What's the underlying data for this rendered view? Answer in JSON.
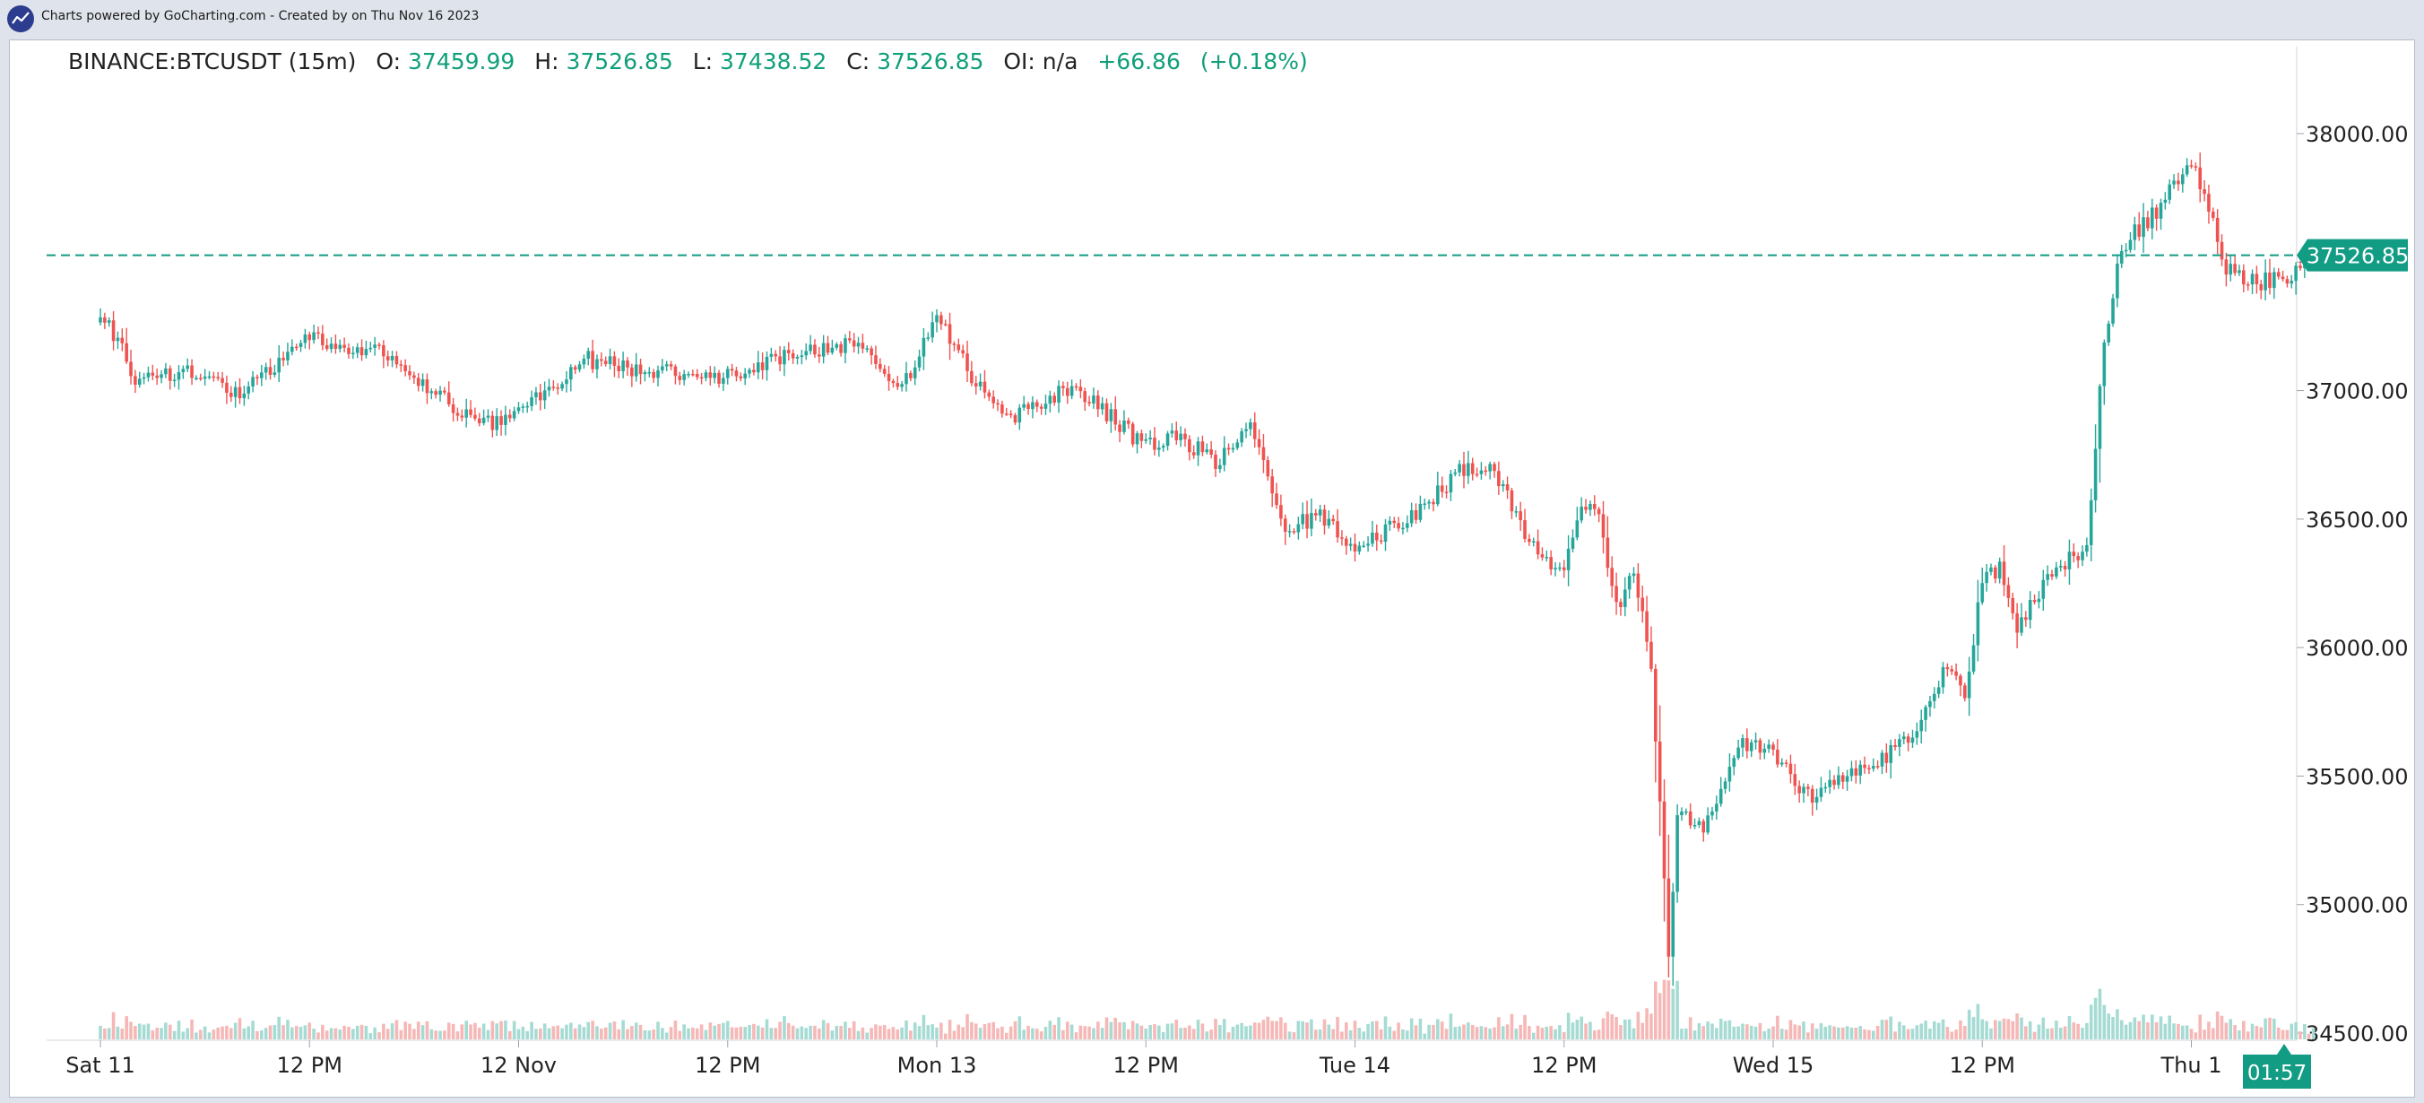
{
  "header": {
    "caption": "Charts powered by GoCharting.com - Created by  on Thu Nov 16 2023"
  },
  "legend": {
    "symbol": "BINANCE:BTCUSDT (15m)",
    "open_label": "O:",
    "open": "37459.99",
    "high_label": "H:",
    "high": "37526.85",
    "low_label": "L:",
    "low": "37438.52",
    "close_label": "C:",
    "close": "37526.85",
    "oi_label": "OI:",
    "oi": "n/a",
    "change": "+66.86",
    "change_pct": "(+0.18%)"
  },
  "colors": {
    "up": "#26a69a",
    "down": "#ef5350",
    "up_volume": "#a6dbd4",
    "down_volume": "#f5b8b6",
    "price_line": "#129c84",
    "axis_text": "#222222"
  },
  "chart_data": {
    "type": "candlestick",
    "interval": "15m",
    "ylim": [
      34500,
      38000
    ],
    "y_ticks": [
      "38000.00",
      "37500.00",
      "37000.00",
      "36500.00",
      "36000.00",
      "35500.00",
      "35000.00",
      "34500.00"
    ],
    "x_ticks": [
      "Sat 11",
      "12 PM",
      "12 Nov",
      "12 PM",
      "Mon 13",
      "12 PM",
      "Tue 14",
      "12 PM",
      "Wed 15",
      "12 PM",
      "Thu 1"
    ],
    "last_price": 37526.85,
    "last_price_label": "37526.85",
    "countdown": "01:57",
    "anchors": [
      [
        "Sat 11 00:00",
        37320
      ],
      [
        "Sat 11 02:00",
        37050
      ],
      [
        "Sat 11 05:00",
        37080
      ],
      [
        "Sat 11 08:00",
        36980
      ],
      [
        "Sat 11 12:00",
        37200
      ],
      [
        "Sat 11 16:00",
        37150
      ],
      [
        "Sat 11 20:00",
        36950
      ],
      [
        "Sat 11 22:00",
        36860
      ],
      [
        "12 Nov 00:00",
        36920
      ],
      [
        "12 Nov 04:00",
        37120
      ],
      [
        "12 Nov 08:00",
        37070
      ],
      [
        "12 Nov 12:00",
        37060
      ],
      [
        "12 Nov 16:00",
        37150
      ],
      [
        "12 Nov 20:00",
        37180
      ],
      [
        "12 Nov 22:00",
        37000
      ],
      [
        "Mon 13 00:00",
        37300
      ],
      [
        "Mon 13 02:00",
        37050
      ],
      [
        "Mon 13 04:00",
        36880
      ],
      [
        "Mon 13 06:00",
        36950
      ],
      [
        "Mon 13 08:00",
        37020
      ],
      [
        "Mon 13 12:00",
        36780
      ],
      [
        "Mon 13 14:00",
        36820
      ],
      [
        "Mon 13 16:00",
        36720
      ],
      [
        "Mon 13 18:00",
        36850
      ],
      [
        "Mon 13 20:00",
        36450
      ],
      [
        "Mon 13 22:00",
        36520
      ],
      [
        "Tue 14 00:00",
        36380
      ],
      [
        "Tue 14 03:00",
        36500
      ],
      [
        "Tue 14 06:00",
        36680
      ],
      [
        "Tue 14 08:00",
        36700
      ],
      [
        "Tue 14 10:00",
        36400
      ],
      [
        "Tue 14 12:00",
        36300
      ],
      [
        "Tue 14 13:00",
        36580
      ],
      [
        "Tue 14 14:00",
        36520
      ],
      [
        "Tue 14 15:00",
        36150
      ],
      [
        "Tue 14 16:00",
        36280
      ],
      [
        "Tue 14 17:00",
        35950
      ],
      [
        "Tue 14 18:00",
        34800
      ],
      [
        "Tue 14 18:30",
        35350
      ],
      [
        "Tue 14 20:00",
        35300
      ],
      [
        "Tue 14 22:00",
        35620
      ],
      [
        "Wed 15 00:00",
        35600
      ],
      [
        "Wed 15 02:00",
        35420
      ],
      [
        "Wed 15 04:00",
        35480
      ],
      [
        "Wed 15 06:00",
        35560
      ],
      [
        "Wed 15 08:00",
        35640
      ],
      [
        "Wed 15 10:00",
        35950
      ],
      [
        "Wed 15 11:00",
        35820
      ],
      [
        "Wed 15 12:00",
        36250
      ],
      [
        "Wed 15 13:00",
        36320
      ],
      [
        "Wed 15 14:00",
        36080
      ],
      [
        "Wed 15 16:00",
        36300
      ],
      [
        "Wed 15 18:00",
        36380
      ],
      [
        "Wed 15 19:00",
        37200
      ],
      [
        "Wed 15 20:00",
        37560
      ],
      [
        "Wed 15 22:00",
        37700
      ],
      [
        "Thu 16 00:00",
        37900
      ],
      [
        "Thu 16 01:00",
        37700
      ],
      [
        "Thu 16 02:00",
        37470
      ],
      [
        "Thu 16 04:00",
        37420
      ],
      [
        "Thu 16 06:00",
        37460
      ],
      [
        "Thu 16 07:00",
        37526.85
      ]
    ]
  }
}
